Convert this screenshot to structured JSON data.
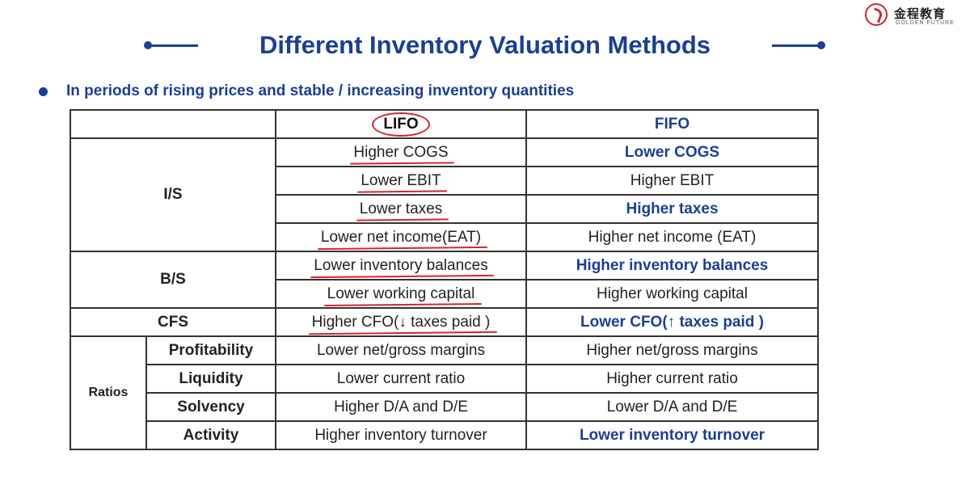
{
  "logo": {
    "cn_text": "金程教育",
    "en_text": "GOLDEN FUTURE"
  },
  "title": "Different Inventory Valuation Methods",
  "bullet": "In periods of rising prices and stable / increasing inventory quantities",
  "colors": {
    "title_blue": "#1c3f92",
    "annotation_red": "#d4262b"
  },
  "table": {
    "headers": {
      "lifo": "LIFO",
      "fifo": "FIFO"
    },
    "groups": {
      "is": "I/S",
      "bs": "B/S",
      "cfs": "CFS",
      "ratios": "Ratios"
    },
    "rows": [
      {
        "sub": "",
        "lifo": "Higher COGS",
        "fifo": "Lower COGS"
      },
      {
        "sub": "",
        "lifo": "Lower EBIT",
        "fifo": "Higher EBIT"
      },
      {
        "sub": "",
        "lifo": "Lower taxes",
        "fifo": "Higher taxes"
      },
      {
        "sub": "",
        "lifo": "Lower net income(EAT)",
        "fifo": "Higher net income (EAT)"
      },
      {
        "sub": "",
        "lifo": "Lower inventory balances",
        "fifo": "Higher inventory balances"
      },
      {
        "sub": "",
        "lifo": "Lower working capital",
        "fifo": "Higher working capital"
      },
      {
        "sub": "",
        "lifo": "Higher CFO(↓ taxes paid )",
        "fifo": "Lower CFO(↑ taxes paid )"
      },
      {
        "sub": "Profitability",
        "lifo": "Lower net/gross margins",
        "fifo": "Higher net/gross margins"
      },
      {
        "sub": "Liquidity",
        "lifo": "Lower current ratio",
        "fifo": "Higher current ratio"
      },
      {
        "sub": "Solvency",
        "lifo": "Higher D/A and D/E",
        "fifo": "Lower D/A and D/E"
      },
      {
        "sub": "Activity",
        "lifo": "Higher inventory turnover",
        "fifo": "Lower inventory turnover"
      }
    ]
  }
}
